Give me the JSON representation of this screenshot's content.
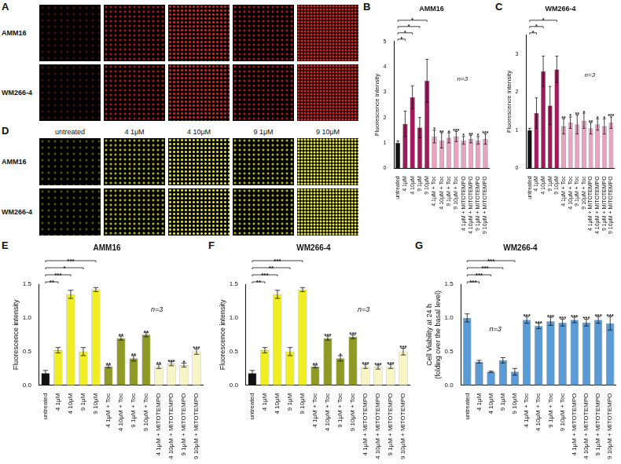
{
  "image_panels": [
    {
      "panel": "A",
      "rows": [
        "AMM16",
        "WM266-4"
      ],
      "color": "#e02424"
    },
    {
      "panel": "D",
      "rows": [
        "AMM16",
        "WM266-4"
      ],
      "columns": [
        "untreated",
        "4 1μM",
        "4 10μM",
        "9 1μM",
        "9 10μM"
      ],
      "color": "#e8e830"
    }
  ],
  "chart_data": [
    {
      "panel": "B",
      "type": "bar",
      "title": "AMM16",
      "y_label": "Fluorescence intensity",
      "annotation": "n=3",
      "categories": [
        "untreated",
        "4 1μM",
        "4 10μM",
        "9 1μM",
        "9 10μM",
        "4 1μM + Toc",
        "4 10μM + Toc",
        "9 1μM + Toc",
        "9 10μM + Toc",
        "4 1μM + MITOTEMPO",
        "4 10μM + MITOTEMPO",
        "9 1μM + MITOTEMPO",
        "9 10μM + MITOTEMPO"
      ],
      "values": [
        1.0,
        1.75,
        2.8,
        1.6,
        3.45,
        1.25,
        1.1,
        1.2,
        1.25,
        1.1,
        1.15,
        1.1,
        1.15
      ],
      "errors": [
        0.08,
        0.5,
        0.45,
        0.4,
        0.85,
        0.25,
        0.3,
        0.2,
        0.2,
        0.15,
        0.15,
        0.15,
        0.2
      ],
      "bar_annotations": [
        null,
        null,
        null,
        null,
        null,
        "*",
        "**",
        "*",
        "***",
        "*",
        "**",
        "*",
        "***"
      ],
      "comparisons": [
        {
          "from": 0,
          "to": 1,
          "label": "*"
        },
        {
          "from": 0,
          "to": 2,
          "label": "*"
        },
        {
          "from": 0,
          "to": 3,
          "label": "*"
        },
        {
          "from": 0,
          "to": 4,
          "label": "*"
        }
      ],
      "colors": [
        "#111111",
        "#a3195b",
        "#a3195b",
        "#a3195b",
        "#a3195b",
        "#e8a3bd",
        "#e8a3bd",
        "#e8a3bd",
        "#e8a3bd",
        "#e8a3bd",
        "#e8a3bd",
        "#e8a3bd",
        "#e8a3bd"
      ],
      "ylim": [
        0,
        5
      ],
      "yticks": [
        0,
        1,
        2,
        3,
        4,
        5
      ],
      "grid": false
    },
    {
      "panel": "C",
      "type": "bar",
      "title": "WM266-4",
      "y_label": "Fluorescence intensity",
      "annotation": "n=3",
      "categories": [
        "untreated",
        "4 1μM",
        "4 10μM",
        "9 1μM",
        "9 10μM",
        "4 1μM + Toc",
        "4 10μM + Toc",
        "9 1μM + Toc",
        "9 10μM + Toc",
        "4 1μM + MITOTEMPO",
        "4 10μM + MITOTEMPO",
        "9 1μM + MITOTEMPO",
        "9 10μM + MITOTEMPO"
      ],
      "values": [
        1.0,
        1.45,
        2.55,
        1.65,
        2.6,
        1.1,
        1.2,
        1.15,
        1.25,
        1.05,
        1.15,
        1.1,
        1.2
      ],
      "errors": [
        0.05,
        0.4,
        0.4,
        0.5,
        0.35,
        0.2,
        0.15,
        0.25,
        0.2,
        0.15,
        0.15,
        0.2,
        0.15
      ],
      "bar_annotations": [
        null,
        null,
        null,
        null,
        null,
        "**",
        "*",
        "**",
        "*",
        "**",
        "*",
        "*",
        "***"
      ],
      "comparisons": [
        {
          "from": 0,
          "to": 1,
          "label": "*"
        },
        {
          "from": 0,
          "to": 2,
          "label": "*"
        },
        {
          "from": 0,
          "to": 4,
          "label": "*"
        }
      ],
      "colors": [
        "#111111",
        "#a3195b",
        "#a3195b",
        "#a3195b",
        "#a3195b",
        "#e8a3bd",
        "#e8a3bd",
        "#e8a3bd",
        "#e8a3bd",
        "#e8a3bd",
        "#e8a3bd",
        "#e8a3bd",
        "#e8a3bd"
      ],
      "ylim": [
        0,
        3.5
      ],
      "yticks": [
        0,
        1,
        2,
        3
      ],
      "grid": false
    },
    {
      "panel": "E",
      "type": "bar",
      "title": "AMM16",
      "y_label": "Fluorescence intensity",
      "annotation": "n=3",
      "categories": [
        "untreated",
        "4 1μM",
        "4 10μM",
        "9 1μM",
        "9 10μM",
        "4 1μM + Toc",
        "4 10μM + Toc",
        "9 1μM + Toc",
        "9 10μM + Toc",
        "4 1μM + MITOTEMPO",
        "4 10μM + MITOTEMPO",
        "9 1μM + MITOTEMPO",
        "9 10μM + MITOTEMPO"
      ],
      "values": [
        0.18,
        0.52,
        1.35,
        0.5,
        1.42,
        0.28,
        0.7,
        0.4,
        0.75,
        0.28,
        0.32,
        0.3,
        0.5
      ],
      "errors": [
        0.04,
        0.04,
        0.06,
        0.06,
        0.03,
        0.02,
        0.03,
        0.04,
        0.03,
        0.03,
        0.03,
        0.03,
        0.04
      ],
      "bar_annotations": [
        null,
        null,
        null,
        null,
        null,
        "**",
        "**",
        "**",
        "**",
        "**",
        "***",
        "*",
        "***"
      ],
      "comparisons": [
        {
          "from": 0,
          "to": 1,
          "label": "**"
        },
        {
          "from": 0,
          "to": 2,
          "label": "***"
        },
        {
          "from": 0,
          "to": 3,
          "label": "*"
        },
        {
          "from": 0,
          "to": 4,
          "label": "***"
        }
      ],
      "colors": [
        "#111111",
        "#eeee22",
        "#eeee22",
        "#eeee22",
        "#eeee22",
        "#8f9a24",
        "#8f9a24",
        "#8f9a24",
        "#8f9a24",
        "#f7f5c4",
        "#f7f5c4",
        "#f7f5c4",
        "#f7f5c4"
      ],
      "ylim": [
        0,
        1.5
      ],
      "yticks": [
        {
          "value": 0,
          "label": "0.0"
        },
        0.5,
        {
          "value": 1,
          "label": "1.0"
        },
        1.5
      ],
      "grid": false
    },
    {
      "panel": "F",
      "type": "bar",
      "title": "WM266-4",
      "y_label": "Fluorescence intensity",
      "annotation": "n=3",
      "categories": [
        "untreated",
        "4 1μM",
        "4 10μM",
        "9 1μM",
        "9 10μM",
        "4 1μM + Toc",
        "4 10μM + Toc",
        "9 1μM + Toc",
        "9 10μM + Toc",
        "4 1μM + MITOTEMPO",
        "4 10μM + MITOTEMPO",
        "9 1μM + MITOTEMPO",
        "9 10μM + MITOTEMPO"
      ],
      "values": [
        0.18,
        0.52,
        1.35,
        0.5,
        1.42,
        0.28,
        0.7,
        0.4,
        0.72,
        0.28,
        0.27,
        0.28,
        0.5
      ],
      "errors": [
        0.04,
        0.04,
        0.06,
        0.06,
        0.03,
        0.02,
        0.03,
        0.04,
        0.03,
        0.03,
        0.03,
        0.03,
        0.05
      ],
      "bar_annotations": [
        null,
        null,
        null,
        null,
        null,
        "**",
        "***",
        "*",
        "***",
        "***",
        "***",
        "***",
        "***"
      ],
      "comparisons": [
        {
          "from": 0,
          "to": 1,
          "label": "**"
        },
        {
          "from": 0,
          "to": 2,
          "label": "***"
        },
        {
          "from": 0,
          "to": 3,
          "label": "**"
        },
        {
          "from": 0,
          "to": 4,
          "label": "***"
        }
      ],
      "colors": [
        "#111111",
        "#eeee22",
        "#eeee22",
        "#eeee22",
        "#eeee22",
        "#8f9a24",
        "#8f9a24",
        "#8f9a24",
        "#8f9a24",
        "#f7f5c4",
        "#f7f5c4",
        "#f7f5c4",
        "#f7f5c4"
      ],
      "ylim": [
        0,
        1.5
      ],
      "yticks": [
        {
          "value": 0,
          "label": "0.0"
        },
        0.5,
        {
          "value": 1,
          "label": "1.0"
        },
        1.5
      ],
      "grid": false
    },
    {
      "panel": "G",
      "type": "bar",
      "title": "WM266-4",
      "y_label": "Cell Viability at 24 h (folding over the basal level)",
      "annotation": "n=3",
      "categories": [
        "untreated",
        "4 1μM",
        "4 10μM",
        "9 1μM",
        "9 10μM",
        "4 1μM + Toc",
        "4 10μM + Toc",
        "9 1μM + Toc",
        "9 10μM + Toc",
        "4 1μM + MITOTEMPO",
        "4 10μM + MITOTEMPO",
        "9 1μM + MITOTEMPO",
        "9 10μM + MITOTEMPO"
      ],
      "values": [
        1.0,
        0.35,
        0.2,
        0.37,
        0.2,
        0.97,
        0.88,
        0.95,
        0.93,
        0.97,
        0.93,
        0.97,
        0.92
      ],
      "errors": [
        0.06,
        0.02,
        0.01,
        0.04,
        0.05,
        0.05,
        0.04,
        0.06,
        0.05,
        0.04,
        0.05,
        0.05,
        0.1
      ],
      "bar_annotations": [
        null,
        null,
        null,
        null,
        null,
        "***",
        "***",
        "***",
        "***",
        "***",
        "***",
        "***",
        "***"
      ],
      "comparisons": [
        {
          "from": 0,
          "to": 1,
          "label": "***"
        },
        {
          "from": 0,
          "to": 2,
          "label": "***"
        },
        {
          "from": 0,
          "to": 3,
          "label": "***"
        },
        {
          "from": 0,
          "to": 4,
          "label": "***"
        }
      ],
      "colors": [
        "#5b9bd5",
        "#5b9bd5",
        "#5b9bd5",
        "#5b9bd5",
        "#5b9bd5",
        "#5b9bd5",
        "#5b9bd5",
        "#5b9bd5",
        "#5b9bd5",
        "#5b9bd5",
        "#5b9bd5",
        "#5b9bd5",
        "#5b9bd5"
      ],
      "ylim": [
        0,
        1.5
      ],
      "yticks": [
        {
          "value": 0,
          "label": "0.0"
        },
        0.5,
        {
          "value": 1,
          "label": "1.0"
        },
        1.5
      ],
      "grid": false
    }
  ]
}
